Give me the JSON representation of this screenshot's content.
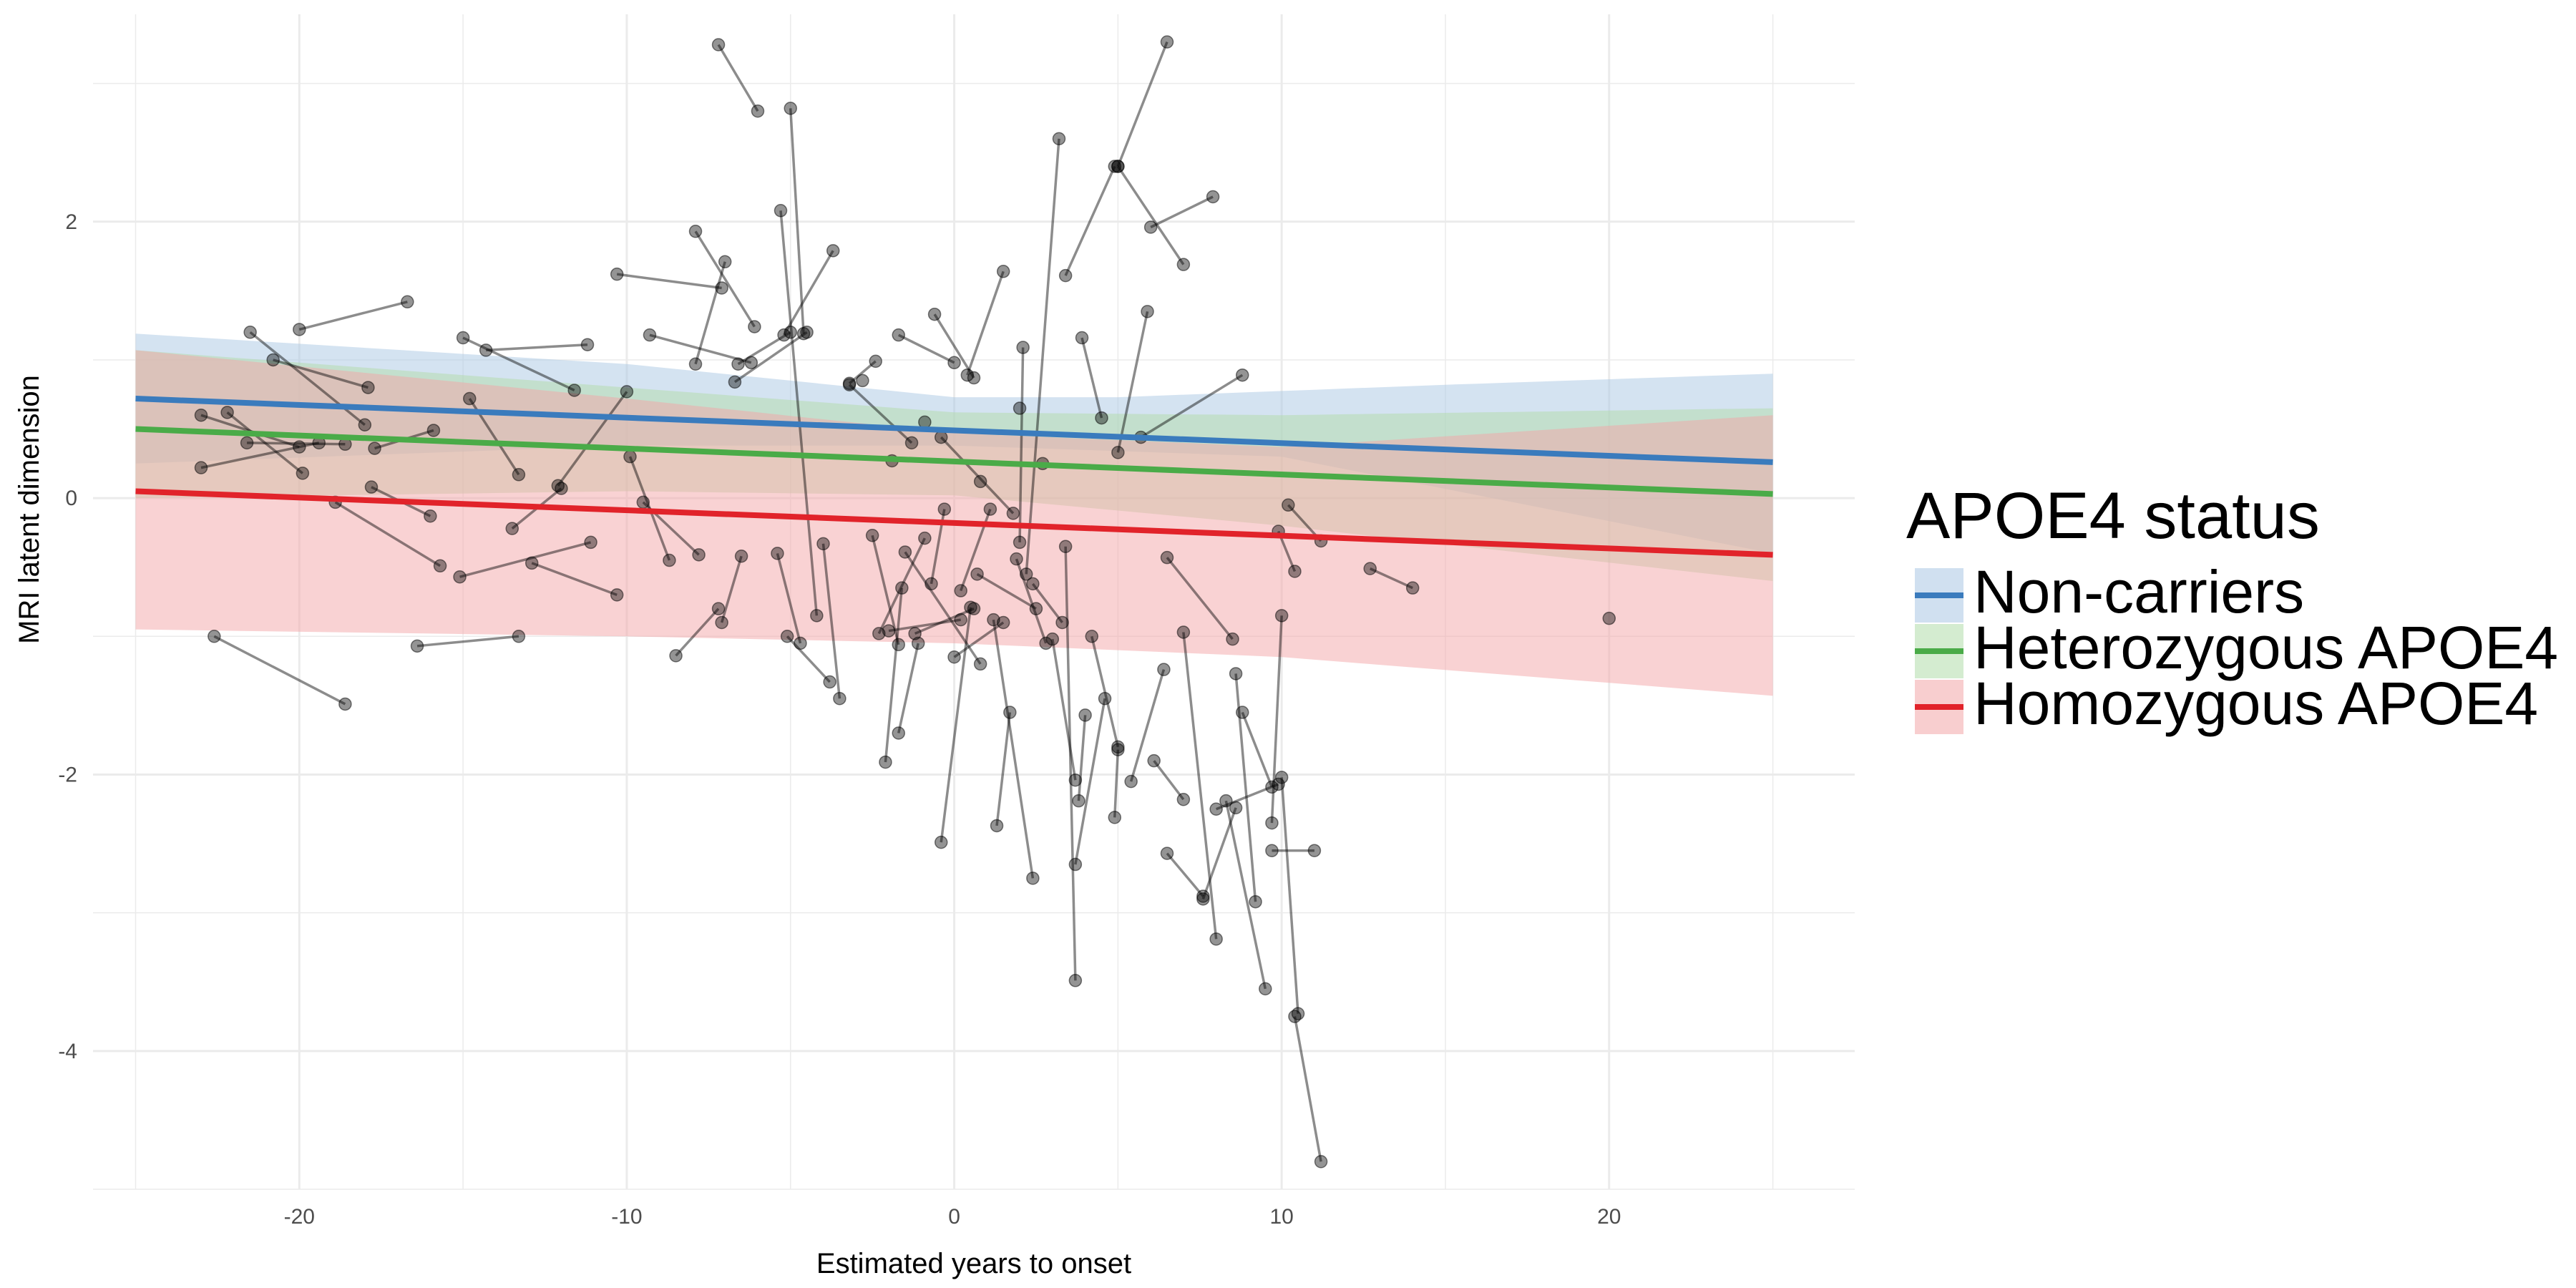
{
  "chart_data": {
    "type": "scatter",
    "xlabel": "Estimated years to onset",
    "ylabel": "MRI latent dimension",
    "xlim": [
      -26.3,
      27.5
    ],
    "ylim": [
      -5.0,
      3.5
    ],
    "x_ticks": [
      -20,
      -10,
      0,
      10,
      20
    ],
    "y_ticks": [
      -4,
      -2,
      0,
      2
    ],
    "grid": true,
    "legend": {
      "title": "APOE4 status",
      "placement": "right",
      "entries": [
        "Non-carriers",
        "Heterozygous APOE4",
        "Homozygous APOE4"
      ]
    },
    "fit_lines": [
      {
        "name": "Non-carriers",
        "color": "#3a7bbd",
        "band_color": "#a9c7e3",
        "x": [
          -25,
          25
        ],
        "y": [
          0.72,
          0.26
        ],
        "band_upper": [
          [
            -25,
            1.19
          ],
          [
            -10,
            0.97
          ],
          [
            0,
            0.73
          ],
          [
            5,
            0.73
          ],
          [
            15,
            0.82
          ],
          [
            25,
            0.9
          ]
        ],
        "band_lower": [
          [
            -25,
            0.25
          ],
          [
            -10,
            0.38
          ],
          [
            0,
            0.38
          ],
          [
            10,
            0.3
          ],
          [
            25,
            -0.4
          ]
        ]
      },
      {
        "name": "Heterozygous APOE4",
        "color": "#4aab48",
        "band_color": "#b1dca9",
        "x": [
          -25,
          25
        ],
        "y": [
          0.5,
          0.03
        ],
        "band_upper": [
          [
            -25,
            1.07
          ],
          [
            -10,
            0.8
          ],
          [
            0,
            0.62
          ],
          [
            10,
            0.6
          ],
          [
            25,
            0.65
          ]
        ],
        "band_lower": [
          [
            -25,
            0.0
          ],
          [
            -10,
            0.05
          ],
          [
            0,
            0.02
          ],
          [
            10,
            -0.2
          ],
          [
            25,
            -0.6
          ]
        ]
      },
      {
        "name": "Homozygous APOE4",
        "color": "#e1232a",
        "band_color": "#f3a5a8",
        "x": [
          -25,
          25
        ],
        "y": [
          0.05,
          -0.41
        ],
        "band_upper": [
          [
            -25,
            1.07
          ],
          [
            -10,
            0.72
          ],
          [
            0,
            0.47
          ],
          [
            10,
            0.37
          ],
          [
            25,
            0.6
          ]
        ],
        "band_lower": [
          [
            -25,
            -0.95
          ],
          [
            -10,
            -1.0
          ],
          [
            0,
            -1.05
          ],
          [
            10,
            -1.15
          ],
          [
            25,
            -1.43
          ]
        ]
      }
    ],
    "subject_trajectories": [
      [
        [
          -7.2,
          3.28
        ],
        [
          -6.0,
          2.8
        ]
      ],
      [
        [
          6.5,
          3.3
        ],
        [
          5.0,
          2.4
        ]
      ],
      [
        [
          -5.0,
          2.82
        ],
        [
          -4.6,
          1.19
        ]
      ],
      [
        [
          -5.3,
          2.08
        ],
        [
          -4.2,
          -0.85
        ]
      ],
      [
        [
          3.2,
          2.6
        ],
        [
          2.2,
          -0.55
        ]
      ],
      [
        [
          -3.7,
          1.79
        ],
        [
          -5.2,
          1.18
        ]
      ],
      [
        [
          -7.9,
          1.93
        ],
        [
          -6.1,
          1.24
        ]
      ],
      [
        [
          5.0,
          2.4
        ],
        [
          7.0,
          1.69
        ]
      ],
      [
        [
          7.9,
          2.18
        ],
        [
          6.0,
          1.96
        ]
      ],
      [
        [
          3.4,
          1.61
        ],
        [
          4.9,
          2.4
        ]
      ],
      [
        [
          -10.3,
          1.62
        ],
        [
          -7.1,
          1.52
        ]
      ],
      [
        [
          -16.7,
          1.42
        ],
        [
          -20.0,
          1.22
        ]
      ],
      [
        [
          -21.5,
          1.2
        ],
        [
          -18.0,
          0.53
        ]
      ],
      [
        [
          -15.0,
          1.16
        ],
        [
          -11.6,
          0.78
        ]
      ],
      [
        [
          -14.3,
          1.07
        ],
        [
          -11.2,
          1.11
        ]
      ],
      [
        [
          -9.3,
          1.18
        ],
        [
          -6.2,
          0.98
        ]
      ],
      [
        [
          -7.0,
          1.71
        ],
        [
          -7.9,
          0.97
        ]
      ],
      [
        [
          -6.6,
          0.97
        ],
        [
          -5.0,
          1.2
        ]
      ],
      [
        [
          -4.5,
          1.2
        ],
        [
          -6.7,
          0.84
        ]
      ],
      [
        [
          -3.2,
          0.83
        ],
        [
          -2.4,
          0.99
        ]
      ],
      [
        [
          -1.7,
          1.18
        ],
        [
          0.0,
          0.98
        ]
      ],
      [
        [
          1.5,
          1.64
        ],
        [
          0.4,
          0.89
        ]
      ],
      [
        [
          2.1,
          1.09
        ],
        [
          2.0,
          -0.32
        ]
      ],
      [
        [
          -0.6,
          1.33
        ],
        [
          0.6,
          0.87
        ]
      ],
      [
        [
          3.9,
          1.16
        ],
        [
          4.5,
          0.58
        ]
      ],
      [
        [
          5.9,
          1.35
        ],
        [
          5.0,
          0.33
        ]
      ],
      [
        [
          8.8,
          0.89
        ],
        [
          5.7,
          0.44
        ]
      ],
      [
        [
          9.9,
          -0.24
        ],
        [
          10.4,
          -0.53
        ]
      ],
      [
        [
          10.2,
          -0.05
        ],
        [
          11.2,
          -0.31
        ]
      ],
      [
        [
          12.7,
          -0.51
        ],
        [
          14.0,
          -0.65
        ]
      ],
      [
        [
          -20.8,
          1.0
        ],
        [
          -17.9,
          0.8
        ]
      ],
      [
        [
          -23.0,
          0.6
        ],
        [
          -20.0,
          0.37
        ]
      ],
      [
        [
          -22.2,
          0.62
        ],
        [
          -19.9,
          0.18
        ]
      ],
      [
        [
          -23.0,
          0.22
        ],
        [
          -19.4,
          0.4
        ]
      ],
      [
        [
          -21.6,
          0.4
        ],
        [
          -18.6,
          0.39
        ]
      ],
      [
        [
          -14.8,
          0.72
        ],
        [
          -13.3,
          0.17
        ]
      ],
      [
        [
          -12.1,
          0.09
        ],
        [
          -10.0,
          0.77
        ]
      ],
      [
        [
          -15.9,
          0.49
        ],
        [
          -17.7,
          0.36
        ]
      ],
      [
        [
          -9.9,
          0.3
        ],
        [
          -8.7,
          -0.45
        ]
      ],
      [
        [
          -3.2,
          0.82
        ],
        [
          -1.3,
          0.4
        ]
      ],
      [
        [
          -0.4,
          0.44
        ],
        [
          1.8,
          -0.11
        ]
      ],
      [
        [
          -17.8,
          0.08
        ],
        [
          -16.0,
          -0.13
        ]
      ],
      [
        [
          -15.7,
          -0.49
        ],
        [
          -18.9,
          -0.03
        ]
      ],
      [
        [
          -15.1,
          -0.57
        ],
        [
          -11.1,
          -0.32
        ]
      ],
      [
        [
          -12.0,
          0.07
        ],
        [
          -13.5,
          -0.22
        ]
      ],
      [
        [
          -12.9,
          -0.47
        ],
        [
          -10.3,
          -0.7
        ]
      ],
      [
        [
          -9.5,
          -0.03
        ],
        [
          -7.8,
          -0.41
        ]
      ],
      [
        [
          -7.1,
          -0.9
        ],
        [
          -6.5,
          -0.42
        ]
      ],
      [
        [
          -5.4,
          -0.4
        ],
        [
          -4.7,
          -1.05
        ]
      ],
      [
        [
          -4.0,
          -0.33
        ],
        [
          -3.5,
          -1.45
        ]
      ],
      [
        [
          -2.5,
          -0.27
        ],
        [
          -1.7,
          -1.06
        ]
      ],
      [
        [
          -1.5,
          -0.39
        ],
        [
          0.8,
          -1.2
        ]
      ],
      [
        [
          -0.9,
          -0.29
        ],
        [
          -2.3,
          -0.98
        ]
      ],
      [
        [
          0.2,
          -0.67
        ],
        [
          1.1,
          -0.08
        ]
      ],
      [
        [
          2.4,
          -0.62
        ],
        [
          3.3,
          -0.9
        ]
      ],
      [
        [
          -22.6,
          -1.0
        ],
        [
          -18.6,
          -1.49
        ]
      ],
      [
        [
          -16.4,
          -1.07
        ],
        [
          -13.3,
          -1.0
        ]
      ],
      [
        [
          -8.5,
          -1.14
        ],
        [
          -7.2,
          -0.8
        ]
      ],
      [
        [
          -5.1,
          -1.0
        ],
        [
          -3.8,
          -1.33
        ]
      ],
      [
        [
          -1.6,
          -0.65
        ],
        [
          -2.1,
          -1.91
        ]
      ],
      [
        [
          -1.1,
          -1.05
        ],
        [
          -1.7,
          -1.7
        ]
      ],
      [
        [
          0.5,
          -0.79
        ],
        [
          -0.4,
          -2.49
        ]
      ],
      [
        [
          1.2,
          -0.88
        ],
        [
          2.4,
          -2.75
        ]
      ],
      [
        [
          1.7,
          -1.55
        ],
        [
          1.3,
          -2.37
        ]
      ],
      [
        [
          3.0,
          -1.02
        ],
        [
          3.7,
          -2.04
        ]
      ],
      [
        [
          3.4,
          -0.35
        ],
        [
          3.7,
          -3.49
        ]
      ],
      [
        [
          4.0,
          -1.57
        ],
        [
          3.8,
          -2.19
        ]
      ],
      [
        [
          4.6,
          -1.45
        ],
        [
          3.7,
          -2.65
        ]
      ],
      [
        [
          5.0,
          -1.82
        ],
        [
          4.9,
          -2.31
        ]
      ],
      [
        [
          4.2,
          -1.0
        ],
        [
          5.0,
          -1.8
        ]
      ],
      [
        [
          6.5,
          -0.43
        ],
        [
          8.5,
          -1.02
        ]
      ],
      [
        [
          6.4,
          -1.24
        ],
        [
          5.4,
          -2.05
        ]
      ],
      [
        [
          6.1,
          -1.9
        ],
        [
          7.0,
          -2.18
        ]
      ],
      [
        [
          6.5,
          -2.57
        ],
        [
          7.6,
          -2.88
        ]
      ],
      [
        [
          7.0,
          -0.97
        ],
        [
          8.0,
          -3.19
        ]
      ],
      [
        [
          8.3,
          -2.19
        ],
        [
          9.5,
          -3.55
        ]
      ],
      [
        [
          8.6,
          -1.27
        ],
        [
          9.2,
          -2.92
        ]
      ],
      [
        [
          8.8,
          -1.55
        ],
        [
          9.7,
          -2.09
        ]
      ],
      [
        [
          9.7,
          -2.55
        ],
        [
          11.0,
          -2.55
        ]
      ],
      [
        [
          10.0,
          -2.02
        ],
        [
          10.5,
          -3.73
        ]
      ],
      [
        [
          10.0,
          -0.85
        ],
        [
          9.7,
          -2.35
        ]
      ],
      [
        [
          11.2,
          -4.8
        ],
        [
          10.4,
          -3.75
        ]
      ],
      [
        [
          8.0,
          -2.25
        ],
        [
          9.9,
          -2.07
        ]
      ],
      [
        [
          7.6,
          -2.9
        ],
        [
          8.6,
          -2.24
        ]
      ],
      [
        [
          -2.0,
          -0.96
        ],
        [
          0.2,
          -0.88
        ]
      ],
      [
        [
          -1.2,
          -0.98
        ],
        [
          0.6,
          -0.8
        ]
      ],
      [
        [
          0.0,
          -1.15
        ],
        [
          1.5,
          -0.9
        ]
      ],
      [
        [
          -0.3,
          -0.08
        ],
        [
          -0.7,
          -0.62
        ]
      ],
      [
        [
          0.7,
          -0.55
        ],
        [
          2.5,
          -0.8
        ]
      ],
      [
        [
          1.9,
          -0.44
        ],
        [
          2.8,
          -1.05
        ]
      ]
    ],
    "extra_points": [
      [
        20.0,
        -0.87
      ],
      [
        2.0,
        0.65
      ],
      [
        -2.8,
        0.85
      ],
      [
        -0.9,
        0.55
      ],
      [
        2.7,
        0.25
      ],
      [
        -1.9,
        0.27
      ],
      [
        0.8,
        0.12
      ]
    ]
  }
}
